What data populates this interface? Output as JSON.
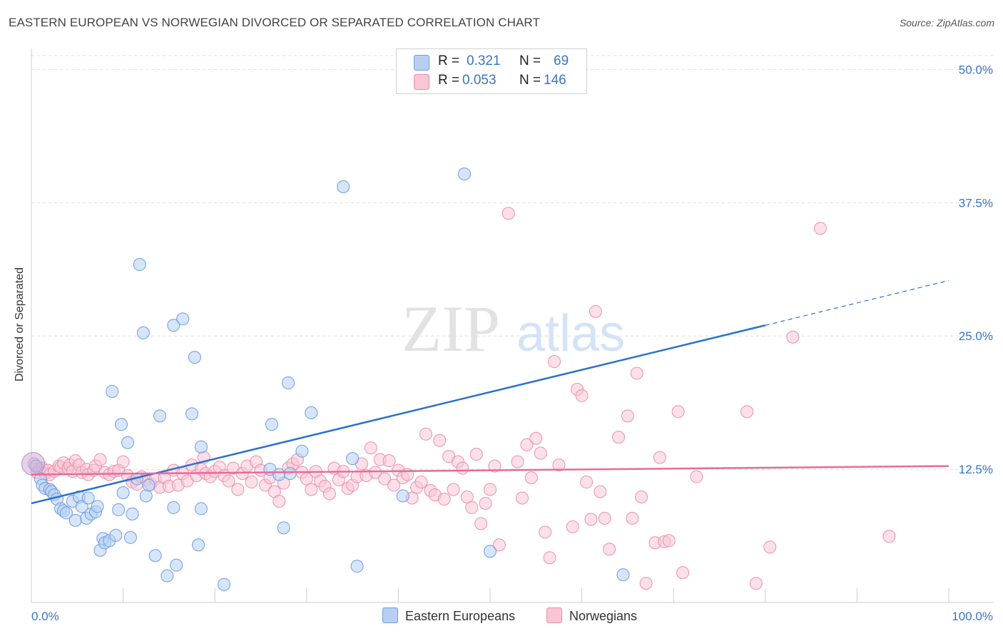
{
  "title": "EASTERN EUROPEAN VS NORWEGIAN DIVORCED OR SEPARATED CORRELATION CHART",
  "source": "Source: ZipAtlas.com",
  "watermark": {
    "zip": "ZIP",
    "atlas": "atlas"
  },
  "legend_top": {
    "rows": [
      {
        "r_label": "R =",
        "r_value": "0.321",
        "n_label": "N =",
        "n_value": "69"
      },
      {
        "r_label": "R =",
        "r_value": "0.053",
        "n_label": "N =",
        "n_value": "146"
      }
    ]
  },
  "legend_bottom": {
    "series1": "Eastern Europeans",
    "series2": "Norwegians"
  },
  "colors": {
    "blue_fill": "#b7d0f2",
    "blue_stroke": "#6d9ee0",
    "blue_line": "#2b70cf",
    "pink_fill": "#f8c6d5",
    "pink_stroke": "#ec8fad",
    "pink_line": "#e86b98",
    "axis_text": "#3a75c4",
    "grid": "#dddddd"
  },
  "chart_data": {
    "type": "scatter",
    "title": "EASTERN EUROPEAN VS NORWEGIAN DIVORCED OR SEPARATED CORRELATION CHART",
    "xlabel": "",
    "ylabel": "Divorced or Separated",
    "xlim": [
      0,
      100
    ],
    "ylim": [
      0,
      51.5
    ],
    "x_tick_labels": [
      "0.0%",
      "100.0%"
    ],
    "y_ticks": [
      12.5,
      25.0,
      37.5,
      50.0
    ],
    "y_tick_labels": [
      "12.5%",
      "25.0%",
      "37.5%",
      "50.0%"
    ],
    "grid": true,
    "legend_position": "top-center",
    "series": [
      {
        "name": "Eastern Europeans",
        "R": 0.321,
        "N": 69,
        "trend": {
          "x": [
            0,
            80
          ],
          "y": [
            9.3,
            26.0
          ],
          "dashed_to": [
            100,
            30.2
          ]
        },
        "points": [
          [
            0.5,
            12.8
          ],
          [
            1.0,
            11.6
          ],
          [
            1.2,
            11.0
          ],
          [
            1.5,
            10.7
          ],
          [
            2.0,
            10.6
          ],
          [
            2.2,
            10.4
          ],
          [
            2.5,
            10.1
          ],
          [
            2.8,
            9.7
          ],
          [
            3.2,
            8.8
          ],
          [
            3.5,
            8.6
          ],
          [
            3.8,
            8.4
          ],
          [
            4.5,
            9.5
          ],
          [
            4.8,
            7.7
          ],
          [
            5.2,
            9.9
          ],
          [
            5.5,
            9.0
          ],
          [
            6.0,
            7.9
          ],
          [
            6.2,
            9.8
          ],
          [
            6.5,
            8.3
          ],
          [
            7.0,
            8.5
          ],
          [
            7.2,
            9.0
          ],
          [
            7.5,
            4.9
          ],
          [
            7.8,
            6.0
          ],
          [
            8.0,
            5.6
          ],
          [
            8.5,
            5.8
          ],
          [
            8.8,
            19.8
          ],
          [
            9.2,
            6.3
          ],
          [
            9.5,
            8.7
          ],
          [
            9.8,
            16.7
          ],
          [
            10.0,
            10.3
          ],
          [
            10.5,
            15.0
          ],
          [
            10.8,
            6.1
          ],
          [
            11.0,
            8.3
          ],
          [
            11.5,
            11.6
          ],
          [
            11.8,
            31.7
          ],
          [
            12.2,
            25.3
          ],
          [
            12.5,
            10.0
          ],
          [
            12.8,
            11.0
          ],
          [
            13.5,
            4.4
          ],
          [
            14.0,
            17.5
          ],
          [
            14.8,
            2.5
          ],
          [
            15.5,
            8.9
          ],
          [
            15.8,
            3.5
          ],
          [
            15.5,
            26.0
          ],
          [
            16.5,
            26.6
          ],
          [
            17.5,
            17.7
          ],
          [
            17.8,
            23.0
          ],
          [
            18.2,
            5.4
          ],
          [
            18.5,
            8.8
          ],
          [
            18.5,
            14.6
          ],
          [
            21.0,
            1.7
          ],
          [
            26.0,
            12.5
          ],
          [
            26.2,
            16.7
          ],
          [
            27.0,
            12.0
          ],
          [
            27.5,
            7.0
          ],
          [
            28.2,
            12.1
          ],
          [
            28.0,
            20.6
          ],
          [
            29.5,
            14.2
          ],
          [
            30.5,
            17.8
          ],
          [
            34.0,
            39.0
          ],
          [
            35.0,
            13.5
          ],
          [
            35.5,
            3.4
          ],
          [
            40.5,
            10.0
          ],
          [
            47.2,
            40.2
          ],
          [
            50.0,
            4.8
          ],
          [
            64.5,
            2.6
          ]
        ]
      },
      {
        "name": "Norwegians",
        "R": 0.053,
        "N": 146,
        "trend": {
          "x": [
            0,
            100
          ],
          "y": [
            12.0,
            12.8
          ]
        },
        "points": [
          [
            0.3,
            13.0
          ],
          [
            0.6,
            12.2
          ],
          [
            0.9,
            12.5
          ],
          [
            1.2,
            12.6
          ],
          [
            1.5,
            12.1
          ],
          [
            1.8,
            12.4
          ],
          [
            2.0,
            12.0
          ],
          [
            2.5,
            12.3
          ],
          [
            3.0,
            12.8
          ],
          [
            3.2,
            12.7
          ],
          [
            3.5,
            13.1
          ],
          [
            4.0,
            12.6
          ],
          [
            4.2,
            12.9
          ],
          [
            4.5,
            12.3
          ],
          [
            4.8,
            13.3
          ],
          [
            5.2,
            12.9
          ],
          [
            5.5,
            12.2
          ],
          [
            6.0,
            12.5
          ],
          [
            6.2,
            12.0
          ],
          [
            6.8,
            12.4
          ],
          [
            7.0,
            12.8
          ],
          [
            7.5,
            13.4
          ],
          [
            8.0,
            12.2
          ],
          [
            8.5,
            12.0
          ],
          [
            9.0,
            12.3
          ],
          [
            9.5,
            12.4
          ],
          [
            10.0,
            13.2
          ],
          [
            10.5,
            11.9
          ],
          [
            11.0,
            11.3
          ],
          [
            11.5,
            11.1
          ],
          [
            12.0,
            11.8
          ],
          [
            12.5,
            11.5
          ],
          [
            13.0,
            11.1
          ],
          [
            13.5,
            11.6
          ],
          [
            14.0,
            10.8
          ],
          [
            14.5,
            11.7
          ],
          [
            15.0,
            10.9
          ],
          [
            15.5,
            12.4
          ],
          [
            16.0,
            11.0
          ],
          [
            16.5,
            12.1
          ],
          [
            17.0,
            11.4
          ],
          [
            17.5,
            12.9
          ],
          [
            18.0,
            11.9
          ],
          [
            18.5,
            12.5
          ],
          [
            18.8,
            13.6
          ],
          [
            19.0,
            12.1
          ],
          [
            19.5,
            11.8
          ],
          [
            20.0,
            12.3
          ],
          [
            20.5,
            12.7
          ],
          [
            21.0,
            11.9
          ],
          [
            21.5,
            11.4
          ],
          [
            22.0,
            12.6
          ],
          [
            22.5,
            10.6
          ],
          [
            23.0,
            12.1
          ],
          [
            23.5,
            12.8
          ],
          [
            24.0,
            11.3
          ],
          [
            24.5,
            13.2
          ],
          [
            25.0,
            12.4
          ],
          [
            25.5,
            11.0
          ],
          [
            26.0,
            11.7
          ],
          [
            26.5,
            10.4
          ],
          [
            27.0,
            9.5
          ],
          [
            27.5,
            11.2
          ],
          [
            28.0,
            12.6
          ],
          [
            28.5,
            13.0
          ],
          [
            29.0,
            13.4
          ],
          [
            29.5,
            12.2
          ],
          [
            30.0,
            11.6
          ],
          [
            30.5,
            10.6
          ],
          [
            31.0,
            12.3
          ],
          [
            31.5,
            11.4
          ],
          [
            32.0,
            10.9
          ],
          [
            32.5,
            10.2
          ],
          [
            33.0,
            12.6
          ],
          [
            33.5,
            11.5
          ],
          [
            34.0,
            12.3
          ],
          [
            34.5,
            10.7
          ],
          [
            35.0,
            11.0
          ],
          [
            35.5,
            11.8
          ],
          [
            36.0,
            13.0
          ],
          [
            36.5,
            11.9
          ],
          [
            37.0,
            14.5
          ],
          [
            37.5,
            12.2
          ],
          [
            38.0,
            13.4
          ],
          [
            38.5,
            11.6
          ],
          [
            39.0,
            13.3
          ],
          [
            39.5,
            11.0
          ],
          [
            40.0,
            12.4
          ],
          [
            40.5,
            11.7
          ],
          [
            41.0,
            12.0
          ],
          [
            41.5,
            9.8
          ],
          [
            42.0,
            10.8
          ],
          [
            42.5,
            11.3
          ],
          [
            43.0,
            15.8
          ],
          [
            43.5,
            10.5
          ],
          [
            44.0,
            10.1
          ],
          [
            44.5,
            15.2
          ],
          [
            45.0,
            9.7
          ],
          [
            45.5,
            13.7
          ],
          [
            46.0,
            10.6
          ],
          [
            46.5,
            13.2
          ],
          [
            47.0,
            12.6
          ],
          [
            47.5,
            9.9
          ],
          [
            48.0,
            8.9
          ],
          [
            48.5,
            13.9
          ],
          [
            49.0,
            7.4
          ],
          [
            49.5,
            9.3
          ],
          [
            50.0,
            10.6
          ],
          [
            50.5,
            12.8
          ],
          [
            51.0,
            5.4
          ],
          [
            52.0,
            36.5
          ],
          [
            53.0,
            13.2
          ],
          [
            53.5,
            9.8
          ],
          [
            54.0,
            14.8
          ],
          [
            54.5,
            11.7
          ],
          [
            55.0,
            15.4
          ],
          [
            55.5,
            14.0
          ],
          [
            56.0,
            6.6
          ],
          [
            56.5,
            4.2
          ],
          [
            57.0,
            22.6
          ],
          [
            57.5,
            12.9
          ],
          [
            59.0,
            7.1
          ],
          [
            59.5,
            20.0
          ],
          [
            60.0,
            19.4
          ],
          [
            60.5,
            11.3
          ],
          [
            61.0,
            7.8
          ],
          [
            61.5,
            27.3
          ],
          [
            62.0,
            10.4
          ],
          [
            62.5,
            7.9
          ],
          [
            63.0,
            5.0
          ],
          [
            64.0,
            15.5
          ],
          [
            65.0,
            17.5
          ],
          [
            65.5,
            7.9
          ],
          [
            66.0,
            21.5
          ],
          [
            66.5,
            9.9
          ],
          [
            67.0,
            1.8
          ],
          [
            68.0,
            5.6
          ],
          [
            68.5,
            13.6
          ],
          [
            69.0,
            5.7
          ],
          [
            69.5,
            5.8
          ],
          [
            70.5,
            17.9
          ],
          [
            71.0,
            2.8
          ],
          [
            72.5,
            11.8
          ],
          [
            78.0,
            17.9
          ],
          [
            79.0,
            1.8
          ],
          [
            80.5,
            5.2
          ],
          [
            83.0,
            24.9
          ],
          [
            86.0,
            35.1
          ],
          [
            93.5,
            6.2
          ]
        ]
      }
    ]
  }
}
